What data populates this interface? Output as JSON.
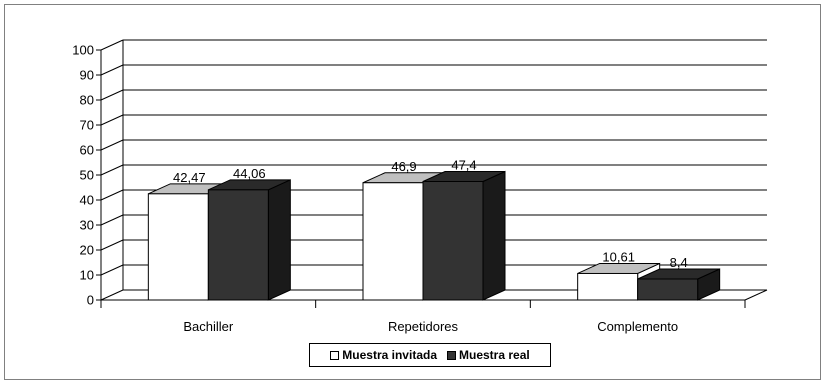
{
  "chart_data": {
    "type": "bar",
    "categories": [
      "Bachiller",
      "Repetidores",
      "Complemento"
    ],
    "series": [
      {
        "name": "Muestra invitada",
        "values": [
          42.47,
          46.9,
          10.61
        ],
        "labels": [
          "42,47",
          "46,9",
          "10,61"
        ],
        "color": "#ffffff",
        "top_color": "#c0c0c0"
      },
      {
        "name": "Muestra real",
        "values": [
          44.06,
          47.4,
          8.4
        ],
        "labels": [
          "44,06",
          "47,4",
          "8,4"
        ],
        "color": "#333333",
        "top_color": "#2a2a2a"
      }
    ],
    "y_ticks": [
      "0",
      "10",
      "20",
      "30",
      "40",
      "50",
      "60",
      "70",
      "80",
      "90",
      "100"
    ],
    "ylim": [
      0,
      100
    ],
    "grid": true,
    "legend": "bottom-center",
    "style": "3d"
  }
}
